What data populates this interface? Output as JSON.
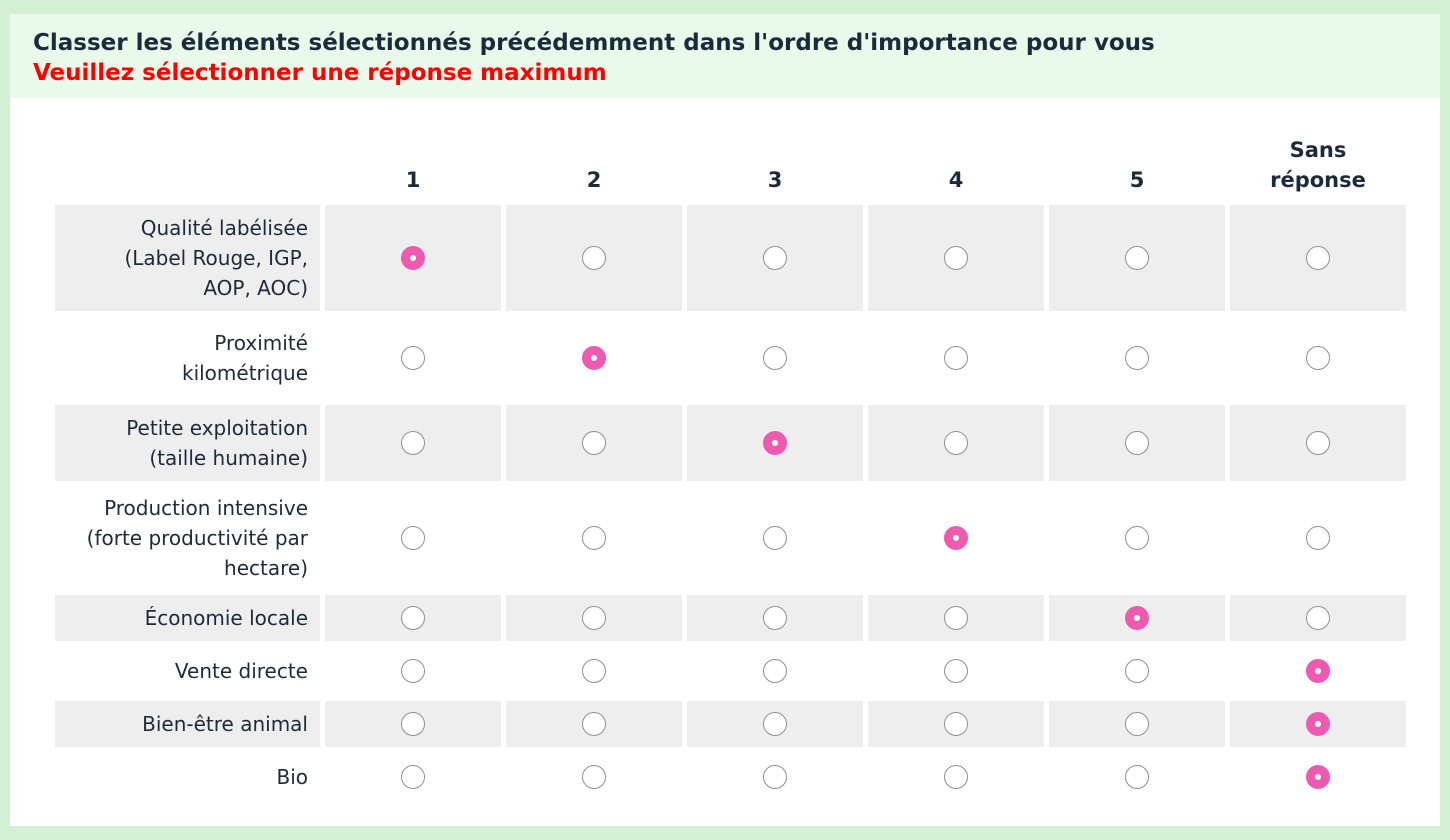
{
  "question": {
    "title": "Classer les éléments sélectionnés précédemment dans l'ordre d'importance pour vous",
    "tip": "Veuillez sélectionner une réponse maximum"
  },
  "columns": [
    "1",
    "2",
    "3",
    "4",
    "5",
    "Sans réponse"
  ],
  "rows": [
    {
      "label": "Qualité labélisée (Label Rouge, IGP, AOP, AOC)",
      "selected": "1"
    },
    {
      "label": "Proximité kilométrique",
      "selected": "2"
    },
    {
      "label": "Petite exploitation (taille humaine)",
      "selected": "3"
    },
    {
      "label": "Production intensive (forte productivité par hectare)",
      "selected": "4"
    },
    {
      "label": "Économie locale",
      "selected": "5"
    },
    {
      "label": "Vente directe",
      "selected": "Sans réponse"
    },
    {
      "label": "Bien-être animal",
      "selected": "Sans réponse"
    },
    {
      "label": "Bio",
      "selected": "Sans réponse"
    }
  ],
  "colors": {
    "checked": "#ef5ab1",
    "tip": "#ff0000",
    "header_bg": "#eafaea",
    "outer_bg": "#d4f0d4",
    "row_odd_bg": "#eeeeee"
  }
}
